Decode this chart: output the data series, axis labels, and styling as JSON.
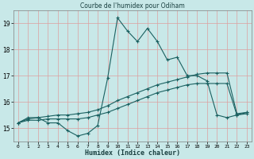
{
  "title": "Courbe de l'humidex pour Odiham",
  "xlabel": "Humidex (Indice chaleur)",
  "bg_color": "#c8e8e8",
  "grid_color": "#e0f0f0",
  "line_color": "#1a6060",
  "xlim": [
    -0.5,
    23.5
  ],
  "ylim": [
    14.5,
    19.5
  ],
  "yticks": [
    15,
    16,
    17,
    18,
    19
  ],
  "xticks": [
    0,
    1,
    2,
    3,
    4,
    5,
    6,
    7,
    8,
    9,
    10,
    11,
    12,
    13,
    14,
    15,
    16,
    17,
    18,
    19,
    20,
    21,
    22,
    23
  ],
  "x": [
    0,
    1,
    2,
    3,
    4,
    5,
    6,
    7,
    8,
    9,
    10,
    11,
    12,
    13,
    14,
    15,
    16,
    17,
    18,
    19,
    20,
    21,
    22,
    23
  ],
  "line1": [
    15.2,
    15.4,
    15.4,
    15.2,
    15.2,
    14.9,
    14.7,
    14.8,
    15.1,
    16.9,
    19.2,
    18.7,
    18.3,
    18.8,
    18.3,
    17.6,
    17.7,
    17.0,
    17.0,
    16.8,
    15.5,
    15.4,
    15.5,
    15.6
  ],
  "line2": [
    15.2,
    15.35,
    15.4,
    15.45,
    15.5,
    15.5,
    15.55,
    15.6,
    15.7,
    15.85,
    16.05,
    16.2,
    16.35,
    16.5,
    16.65,
    16.75,
    16.85,
    16.95,
    17.05,
    17.1,
    17.1,
    17.1,
    15.55,
    15.6
  ],
  "line3": [
    15.2,
    15.3,
    15.3,
    15.35,
    15.35,
    15.35,
    15.35,
    15.4,
    15.5,
    15.6,
    15.75,
    15.9,
    16.05,
    16.2,
    16.35,
    16.45,
    16.55,
    16.65,
    16.7,
    16.7,
    16.7,
    16.7,
    15.5,
    15.55
  ]
}
